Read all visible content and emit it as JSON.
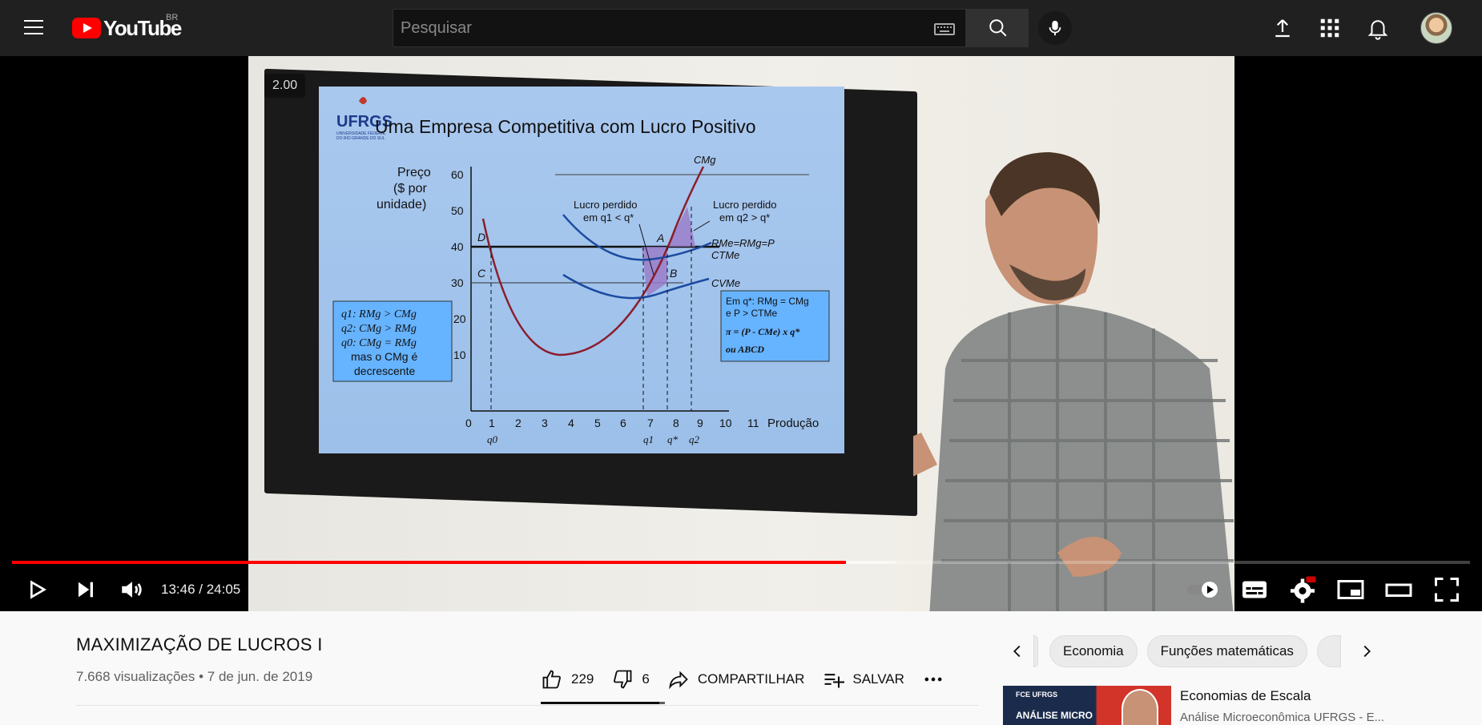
{
  "header": {
    "logo_text": "YouTube",
    "country_code": "BR",
    "search_placeholder": "Pesquisar"
  },
  "player": {
    "speed_badge": "2.00",
    "time_display": "13:46 / 24:05",
    "progress_played_fraction": 0.572,
    "progress_buffered_fraction": 0.606,
    "slide": {
      "logo": "UFRGS",
      "logo_sub1": "UNIVERSIDADE FEDERAL",
      "logo_sub2": "DO RIO GRANDE DO SUL",
      "title": "Uma Empresa Competitiva com Lucro Positivo",
      "ylabel_1": "Preço",
      "ylabel_2": "($ por",
      "ylabel_3": "unidade)",
      "xlabel": "Produção",
      "y_ticks": [
        "60",
        "50",
        "40",
        "30",
        "20",
        "10"
      ],
      "x_ticks": [
        "0",
        "1",
        "2",
        "3",
        "4",
        "5",
        "6",
        "7",
        "8",
        "9",
        "10",
        "11"
      ],
      "q0": "q0",
      "q1": "q1",
      "qstar": "q*",
      "q2": "q2",
      "curve_cmg": "CMg",
      "curve_ctme": "CTMe",
      "curve_cvme": "CVMe",
      "price_line": "RMe=RMg=P",
      "lost1_a": "Lucro perdido",
      "lost1_b": "em q1 < q*",
      "lost2_a": "Lucro perdido",
      "lost2_b": "em q2 > q*",
      "point_a": "A",
      "point_b": "B",
      "point_c": "C",
      "point_d": "D",
      "box_left": [
        "q1: RMg > CMg",
        "q2: CMg > RMg",
        "q0: CMg = RMg",
        "mas o CMg é",
        "decrescente"
      ],
      "box_right": [
        "Em q*: RMg = CMg",
        "e P > CTMe",
        "π = (P - CMe) x q*",
        "ou ABCD"
      ]
    }
  },
  "video": {
    "title": "MAXIMIZAÇÃO DE LUCROS I",
    "meta": "7.668 visualizações • 7 de jun. de 2019",
    "likes": "229",
    "dislikes": "6",
    "share_label": "COMPARTILHAR",
    "save_label": "SALVAR"
  },
  "sidebar": {
    "chips": [
      "Economia",
      "Funções matemáticas"
    ],
    "recommendation": {
      "thumb_label": "ANÁLISE MICRO",
      "thumb_brand": "FCE UFRGS",
      "title": "Economias de Escala",
      "channel": "Análise Microeconômica UFRGS - E..."
    }
  },
  "colors": {
    "accent_red": "#ff0000",
    "topbar_bg": "#202020",
    "page_bg": "#f9f9f9"
  }
}
